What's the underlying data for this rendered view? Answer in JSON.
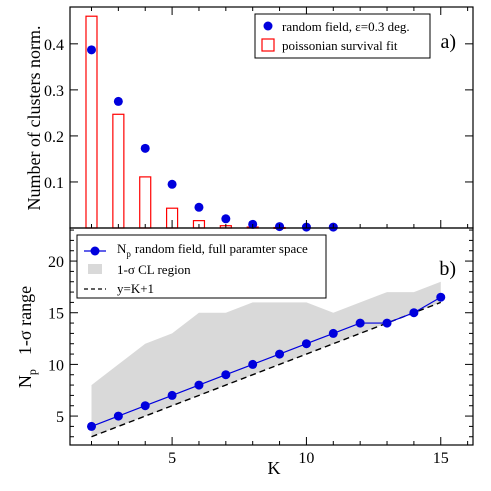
{
  "chart_data": [
    {
      "panel_label": "a)",
      "type": "bar",
      "xlim": [
        1.2,
        16.2
      ],
      "ylim": [
        0,
        0.48
      ],
      "ylabel": "Number of clusters norm.",
      "yticks": [
        0.1,
        0.2,
        0.3,
        0.4
      ],
      "ytick_labels": [
        "0.1",
        "0.2",
        "0.3",
        "0.4"
      ],
      "series": [
        {
          "name": "random field, ε=0.3 deg.",
          "kind": "scatter",
          "color": "#0000dd",
          "x": [
            2,
            3,
            4,
            5,
            6,
            7,
            8,
            9,
            10,
            11
          ],
          "y": [
            0.387,
            0.275,
            0.173,
            0.095,
            0.045,
            0.02,
            0.008,
            0.003,
            0.002,
            0.002
          ]
        },
        {
          "name": "poissonian survival fit",
          "kind": "bar",
          "color": "#ff0000",
          "x": [
            2,
            3,
            4,
            5,
            6,
            7,
            8,
            9
          ],
          "y": [
            0.46,
            0.247,
            0.111,
            0.043,
            0.016,
            0.005,
            0.002,
            0.001
          ]
        }
      ],
      "legend_position": "top-right"
    },
    {
      "panel_label": "b)",
      "type": "line",
      "xlabel": "K",
      "ylabel": "N",
      "ylabel_sub": "p",
      "ylabel2": "1-σ range",
      "xlim": [
        1.2,
        16.2
      ],
      "ylim": [
        2.2,
        23.2
      ],
      "xticks": [
        5,
        10,
        15
      ],
      "xtick_labels": [
        "5",
        "10",
        "15"
      ],
      "yticks": [
        5,
        10,
        15,
        20
      ],
      "ytick_labels": [
        "5",
        "10",
        "15",
        "20"
      ],
      "series": [
        {
          "name": "N",
          "name_sub": "p",
          "name_rest": "random field, full paramter space",
          "kind": "line-markers",
          "color": "#0000dd",
          "x": [
            2,
            3,
            4,
            5,
            6,
            7,
            8,
            9,
            10,
            11,
            12,
            13,
            14,
            15
          ],
          "y": [
            4,
            5,
            6,
            7,
            8,
            9,
            10,
            11,
            12,
            13,
            14,
            14,
            15,
            16.5
          ]
        },
        {
          "name": "1-σ CL region",
          "kind": "band",
          "color": "#d9d9d9",
          "x": [
            2,
            3,
            4,
            5,
            6,
            7,
            8,
            9,
            10,
            11,
            12,
            13,
            14,
            15
          ],
          "upper": [
            8,
            10,
            12,
            13,
            15,
            15,
            16,
            16,
            16,
            15,
            16,
            17,
            17,
            18
          ],
          "lower": [
            3,
            4,
            5,
            6,
            7,
            8,
            9,
            10,
            11,
            12,
            13,
            14,
            15,
            16
          ]
        },
        {
          "name": "y=K+1",
          "kind": "dashed-line",
          "color": "#000000",
          "x": [
            2,
            15
          ],
          "y": [
            3,
            16
          ]
        }
      ],
      "legend_position": "top-left"
    }
  ]
}
